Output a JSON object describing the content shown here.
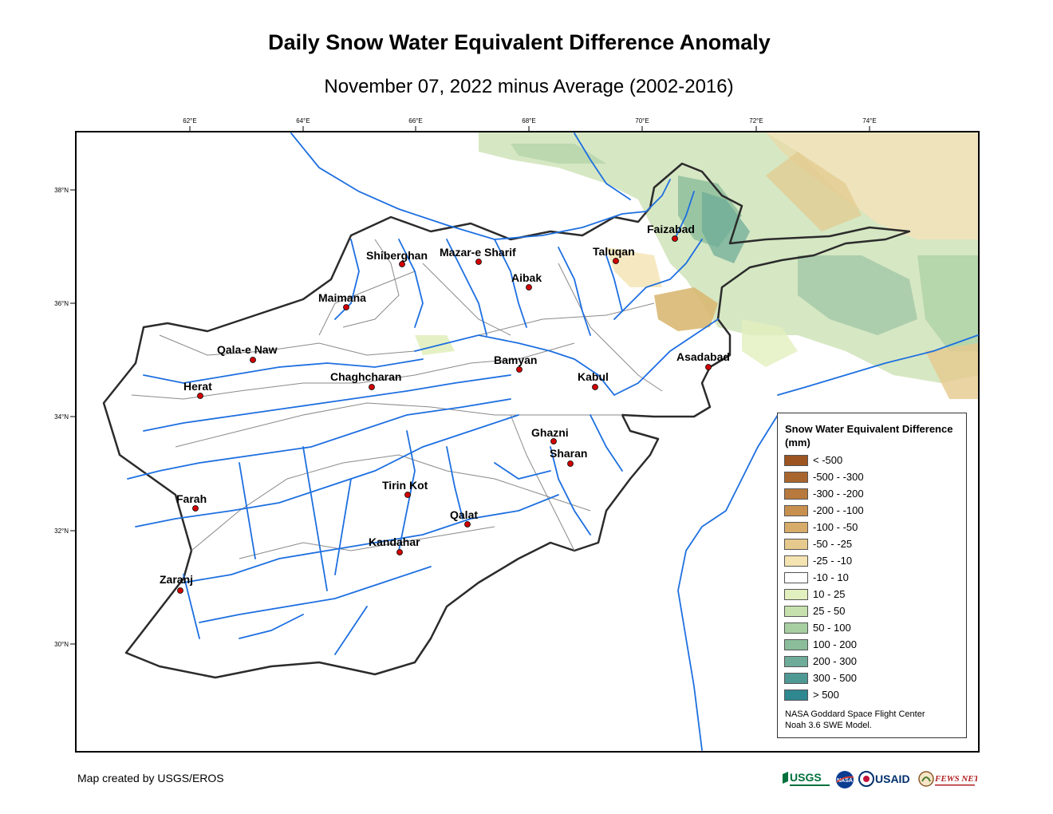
{
  "title": "Daily Snow Water Equivalent Difference Anomaly",
  "subtitle": "November 07, 2022 minus Average (2002-2016)",
  "longitude_ticks": [
    "62°E",
    "64°E",
    "66°E",
    "68°E",
    "70°E",
    "72°E",
    "74°E"
  ],
  "latitude_ticks": [
    "38°N",
    "36°N",
    "34°N",
    "32°N",
    "30°N"
  ],
  "cities": [
    {
      "name": "Faizabad"
    },
    {
      "name": "Shiberghan"
    },
    {
      "name": "Mazar-e Sharif"
    },
    {
      "name": "Taluqan"
    },
    {
      "name": "Aibak"
    },
    {
      "name": "Maimana"
    },
    {
      "name": "Qala-e Naw"
    },
    {
      "name": "Bamyan"
    },
    {
      "name": "Asadabad"
    },
    {
      "name": "Chaghcharan"
    },
    {
      "name": "Kabul"
    },
    {
      "name": "Herat"
    },
    {
      "name": "Ghazni"
    },
    {
      "name": "Sharan"
    },
    {
      "name": "Tirin Kot"
    },
    {
      "name": "Farah"
    },
    {
      "name": "Qalat"
    },
    {
      "name": "Kandahar"
    },
    {
      "name": "Zaranj"
    }
  ],
  "legend": {
    "title": "Snow Water Equivalent Difference (mm)",
    "items": [
      {
        "label": "< -500",
        "color": "#9c5420"
      },
      {
        "label": "-500 - -300",
        "color": "#a9652e"
      },
      {
        "label": "-300 - -200",
        "color": "#b7793d"
      },
      {
        "label": "-200 - -100",
        "color": "#c7904f"
      },
      {
        "label": "-100 - -50",
        "color": "#d7ab6a"
      },
      {
        "label": "-50 - -25",
        "color": "#e6c98d"
      },
      {
        "label": "-25 - -10",
        "color": "#f4e4b2"
      },
      {
        "label": "-10 - 10",
        "color": "#ffffff"
      },
      {
        "label": "10 - 25",
        "color": "#e2efbe"
      },
      {
        "label": "25 - 50",
        "color": "#c6e1ad"
      },
      {
        "label": "50 - 100",
        "color": "#a8cfa2"
      },
      {
        "label": "100 - 200",
        "color": "#8bbd9b"
      },
      {
        "label": "200 - 300",
        "color": "#6eab98"
      },
      {
        "label": "300 - 500",
        "color": "#4f9995"
      },
      {
        "label": "> 500",
        "color": "#2f8790"
      }
    ],
    "source_line1": "NASA Goddard Space Flight Center",
    "source_line2": "Noah 3.6 SWE Model."
  },
  "credit": "Map created by USGS/EROS",
  "logos": {
    "usgs": "USGS",
    "nasa": "NASA",
    "usaid": "USAID",
    "fewsnet": "FEWS NET"
  },
  "colors": {
    "river": "#1d6fe0",
    "border": "#2b2b2b",
    "city_marker": "#d10000"
  }
}
